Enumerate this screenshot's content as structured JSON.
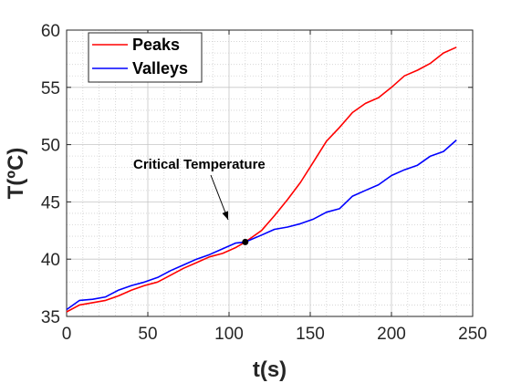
{
  "chart_data": {
    "type": "line",
    "title": "",
    "xlabel": "t(s)",
    "ylabel": "T(ºC)",
    "xlim": [
      0,
      250
    ],
    "ylim": [
      35,
      60
    ],
    "xticks": [
      0,
      50,
      100,
      150,
      200,
      250
    ],
    "yticks": [
      35,
      40,
      45,
      50,
      55,
      60
    ],
    "grid": "major and minor (dotted)",
    "legend_position": "top-left",
    "series": [
      {
        "name": "Peaks",
        "color": "#ff0000",
        "x": [
          0,
          8,
          16,
          24,
          32,
          40,
          48,
          56,
          64,
          72,
          80,
          88,
          96,
          104,
          110,
          120,
          128,
          136,
          144,
          152,
          160,
          168,
          176,
          184,
          192,
          200,
          208,
          216,
          224,
          232,
          240
        ],
        "y": [
          35.4,
          36.0,
          36.2,
          36.4,
          36.8,
          37.3,
          37.7,
          38.0,
          38.6,
          39.2,
          39.7,
          40.2,
          40.5,
          41.0,
          41.5,
          42.5,
          43.8,
          45.2,
          46.7,
          48.5,
          50.3,
          51.5,
          52.8,
          53.6,
          54.1,
          55.0,
          56.0,
          56.5,
          57.1,
          58.0,
          58.5
        ]
      },
      {
        "name": "Valleys",
        "color": "#0000ff",
        "x": [
          0,
          8,
          16,
          24,
          32,
          40,
          48,
          56,
          64,
          72,
          80,
          88,
          96,
          104,
          110,
          120,
          128,
          136,
          144,
          152,
          160,
          168,
          176,
          184,
          192,
          200,
          208,
          216,
          224,
          232,
          240
        ],
        "y": [
          35.6,
          36.4,
          36.5,
          36.7,
          37.3,
          37.7,
          38.0,
          38.4,
          39.0,
          39.5,
          40.0,
          40.4,
          40.9,
          41.4,
          41.5,
          42.1,
          42.6,
          42.8,
          43.1,
          43.5,
          44.1,
          44.4,
          45.5,
          46.0,
          46.5,
          47.3,
          47.8,
          48.2,
          49.0,
          49.4,
          50.4
        ]
      }
    ],
    "annotation": {
      "text": "Critical Temperature",
      "point": [
        110,
        41.5
      ]
    }
  }
}
